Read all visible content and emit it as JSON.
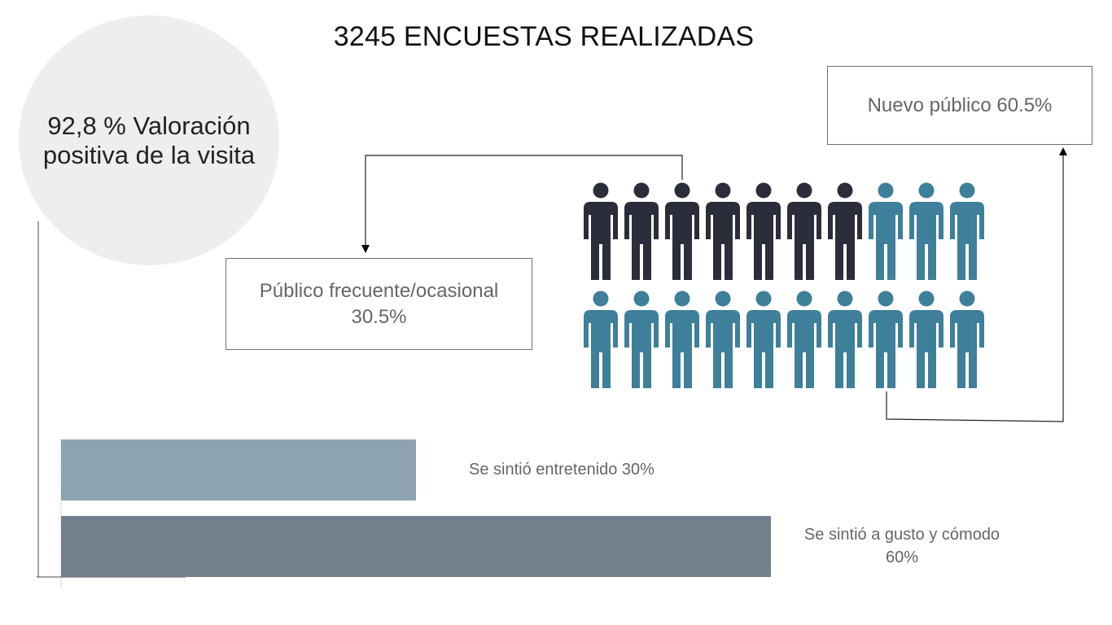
{
  "title": "3245 ENCUESTAS REALIZADAS",
  "rating": {
    "text": "92,8 % Valoración positiva de la visita"
  },
  "audience": {
    "new": {
      "label": "Nuevo público 60.5%",
      "value": 60.5
    },
    "frequent": {
      "label": "Público frecuente/ocasional 30.5%",
      "value": 30.5
    },
    "icons": {
      "rows": 2,
      "per_row": 10,
      "dark_count": 7,
      "dark_color": "#2b2d3a",
      "teal_color": "#3e7f99"
    }
  },
  "chart_data": {
    "type": "bar",
    "orientation": "horizontal",
    "categories": [
      "Se sintió entretenido",
      "Se sintió a gusto y cómodo"
    ],
    "values": [
      30,
      60
    ],
    "labels": [
      "Se sintió entretenido 30%",
      "Se sintió a gusto y cómodo 60%"
    ],
    "colors": [
      "#8da4b0",
      "#737f8c"
    ],
    "xlim": [
      0,
      60
    ],
    "grid": false,
    "legend": "none"
  }
}
